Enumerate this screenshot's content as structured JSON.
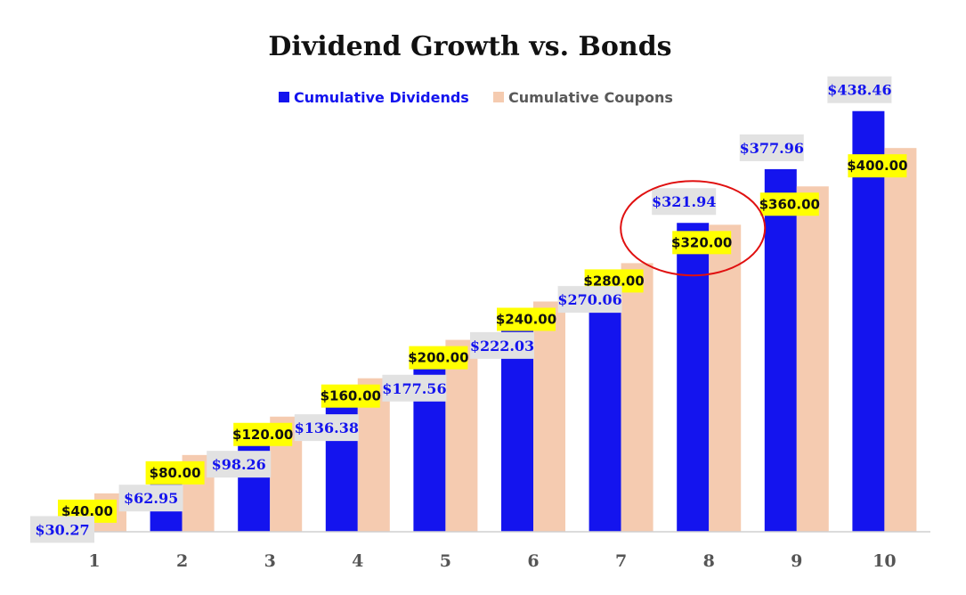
{
  "chart_data": {
    "type": "bar",
    "title": "Dividend Growth vs. Bonds",
    "xlabel": "",
    "ylabel": "",
    "categories": [
      "1",
      "2",
      "3",
      "4",
      "5",
      "6",
      "7",
      "8",
      "9",
      "10"
    ],
    "series": [
      {
        "name": "Cumulative Dividends",
        "color": "#1414ee",
        "values": [
          30.27,
          62.95,
          98.26,
          136.38,
          177.56,
          222.03,
          270.06,
          321.94,
          377.96,
          438.46
        ],
        "labels": [
          "$30.27",
          "$62.95",
          "$98.26",
          "$136.38",
          "$177.56",
          "$222.03",
          "$270.06",
          "$321.94",
          "$377.96",
          "$438.46"
        ],
        "label_bg": "#e2e2e2"
      },
      {
        "name": "Cumulative Coupons",
        "color": "#f5cbb0",
        "values": [
          40,
          80,
          120,
          160,
          200,
          240,
          280,
          320,
          360,
          400
        ],
        "labels": [
          "$40.00",
          "$80.00",
          "$120.00",
          "$160.00",
          "$200.00",
          "$240.00",
          "$280.00",
          "$320.00",
          "$360.00",
          "$400.00"
        ],
        "label_bg": "#ffff00"
      }
    ],
    "ylim": [
      0,
      480
    ],
    "grid": false,
    "legend_position": "top-center",
    "annotation": {
      "type": "circle",
      "color": "#e01010",
      "category": "8"
    }
  }
}
